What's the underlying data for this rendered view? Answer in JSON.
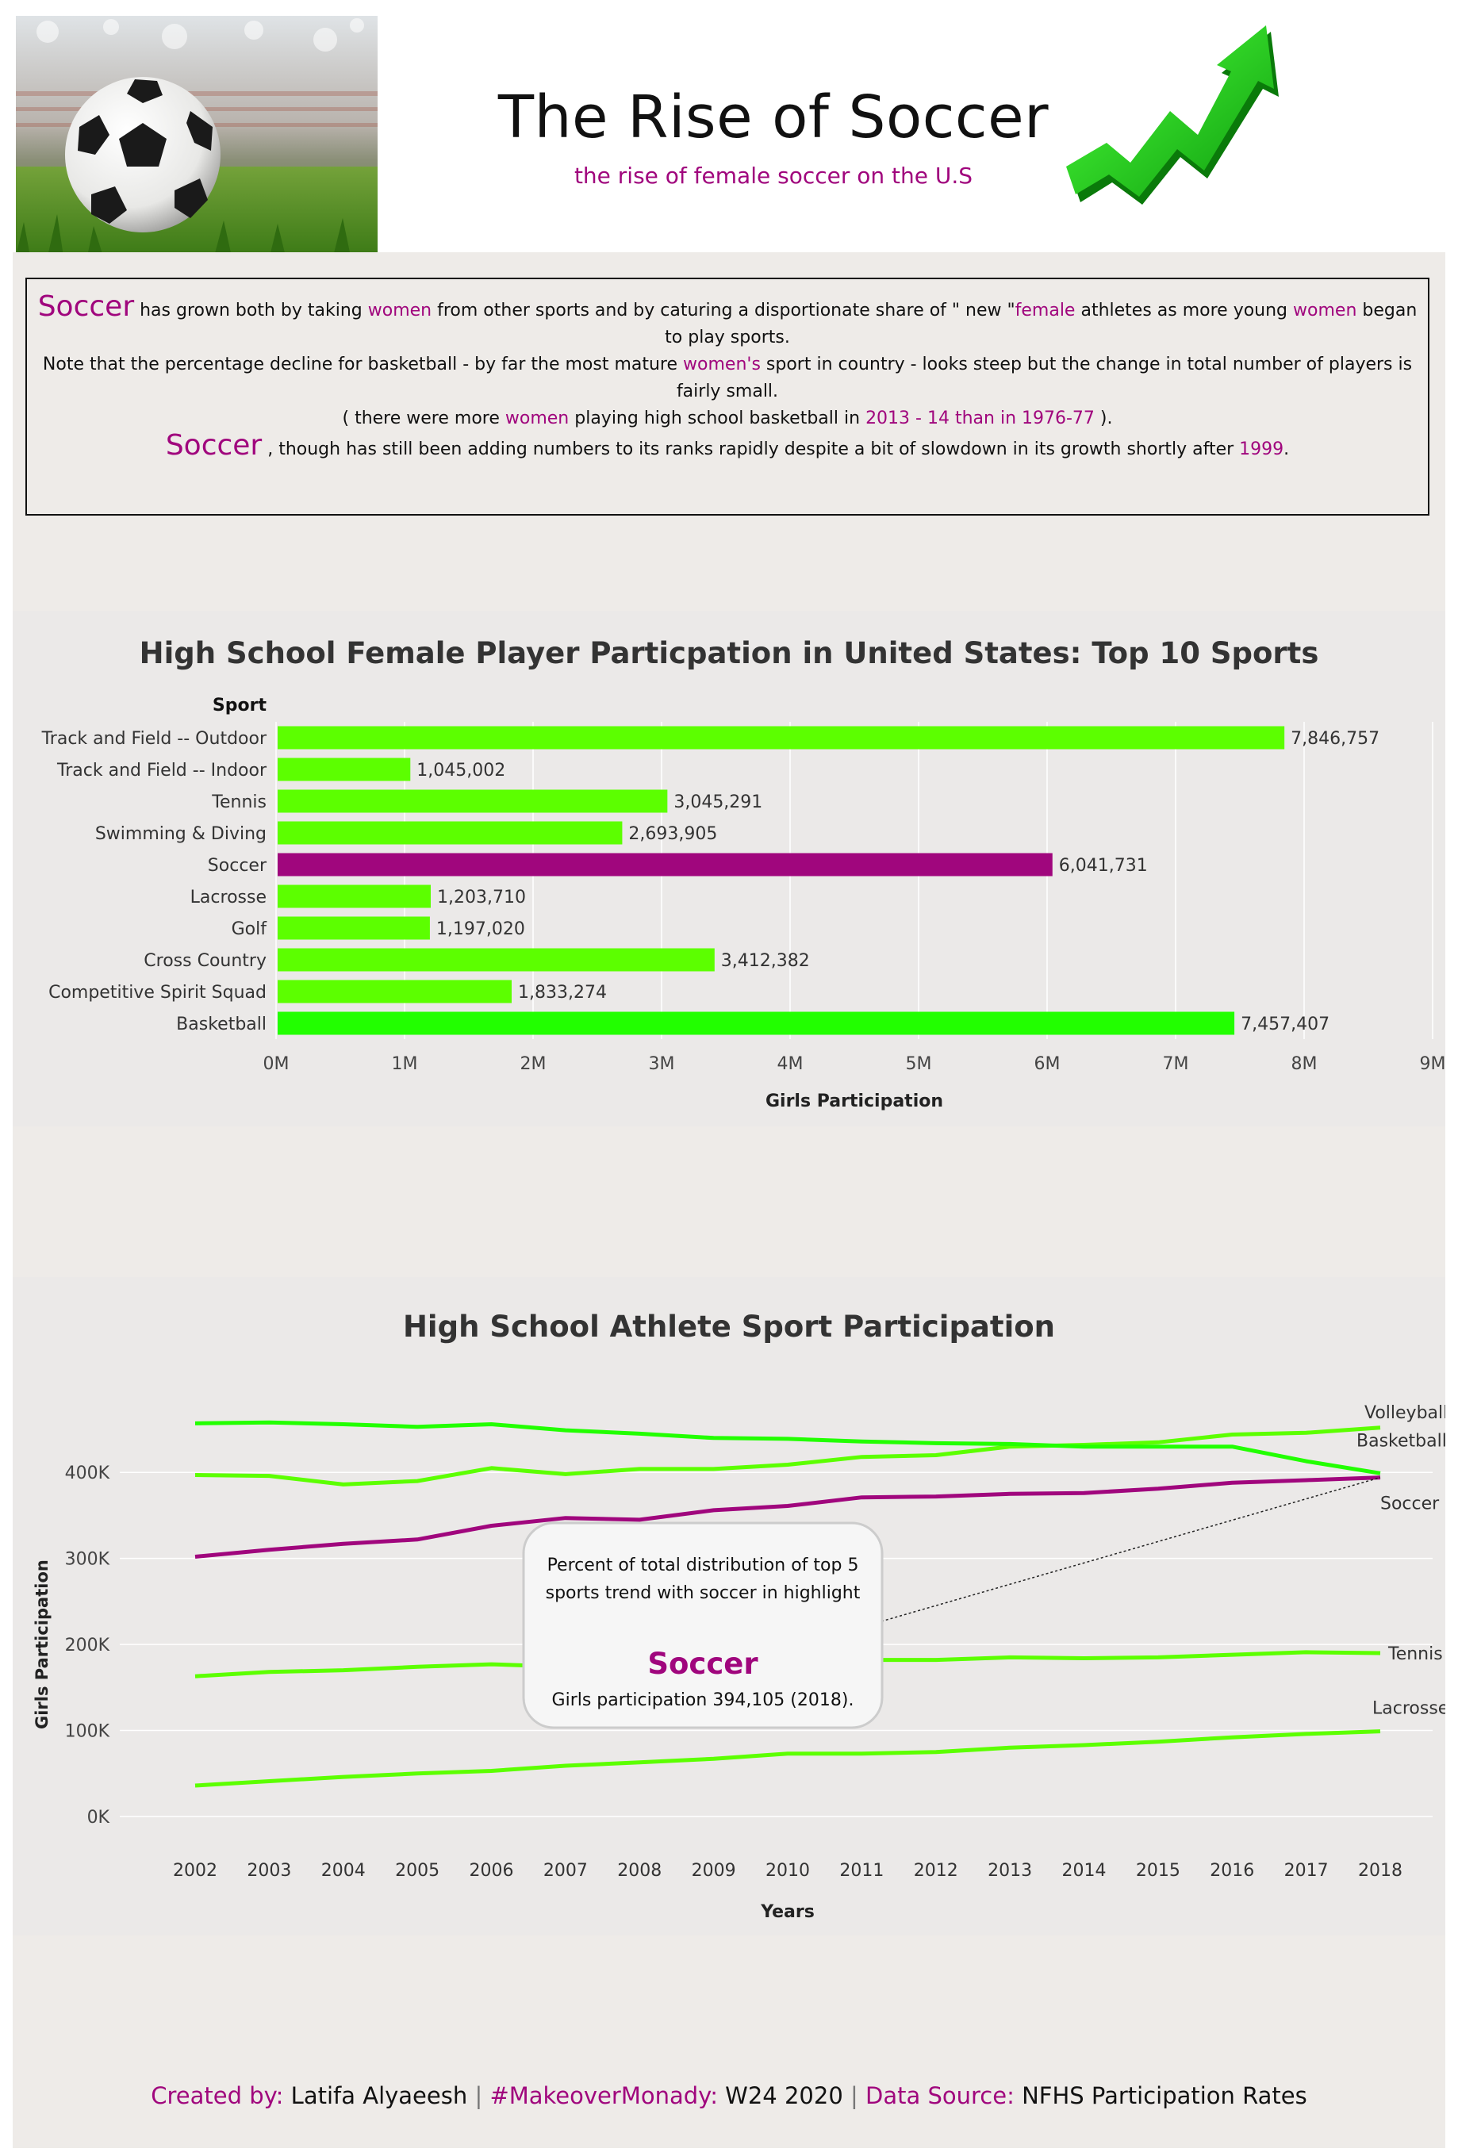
{
  "header": {
    "title": "The Rise of Soccer",
    "subtitle": "the rise of female soccer on the U.S"
  },
  "intro": {
    "p1": {
      "lead": "Soccer",
      "t1": " has grown both by taking ",
      "w1": "women",
      "t2": " from other sports and by caturing a disportionate share of \" new \"",
      "w2": "female",
      "t3": " athletes as more young ",
      "w3": "women",
      "t4": " began to play sports."
    },
    "p2": {
      "t1": "Note that the percentage decline for basketball - by far the most mature ",
      "w1": "women's",
      "t2": " sport in country - looks steep  but the change in total number of players is fairly small."
    },
    "p3": {
      "t1": "( there were more ",
      "w1": "women",
      "t2": " playing high school basketball in ",
      "w2": "2013 - 14 than in 1976-77",
      "t3": " )."
    },
    "p4": {
      "lead": "Soccer",
      "t1": " , though has still been adding numbers to its ranks rapidly despite a bit of slowdown in its growth shortly after ",
      "w1": "1999",
      "t2": "."
    }
  },
  "footer": {
    "l1": "Created by:",
    "v1": " Latifa Alyaeesh ",
    "sep1": "|",
    "l2": " #MakeoverMonady:",
    "v2": " W24 2020 ",
    "sep2": "|",
    "l3": " Data Source:",
    "v3": " NFHS Participation Rates"
  },
  "colors": {
    "green": "#5cff00",
    "green_bright": "#22ff00",
    "highlight": "#a0067d",
    "panel": "#eeebe8"
  },
  "chart_data": [
    {
      "type": "bar",
      "orientation": "horizontal",
      "title": "High School Female Player Particpation in United States: Top 10 Sports",
      "ylabel": "Sport",
      "xlabel": "Girls Participation",
      "categories": [
        "Track and Field -- Outdoor",
        "Track and Field -- Indoor",
        "Tennis",
        "Swimming & Diving",
        "Soccer",
        "Lacrosse",
        "Golf",
        "Cross Country",
        "Competitive Spirit Squad",
        "Basketball"
      ],
      "values": [
        7846757,
        1045002,
        3045291,
        2693905,
        6041731,
        1203710,
        1197020,
        3412382,
        1833274,
        7457407
      ],
      "value_labels": [
        "7,846,757",
        "1,045,002",
        "3,045,291",
        "2,693,905",
        "6,041,731",
        "1,203,710",
        "1,197,020",
        "3,412,382",
        "1,833,274",
        "7,457,407"
      ],
      "highlight": "Soccer",
      "xlim": [
        0,
        9000000
      ],
      "xticks": [
        0,
        1000000,
        2000000,
        3000000,
        4000000,
        5000000,
        6000000,
        7000000,
        8000000,
        9000000
      ],
      "xtick_labels": [
        "0M",
        "1M",
        "2M",
        "3M",
        "4M",
        "5M",
        "6M",
        "7M",
        "8M",
        "9M"
      ],
      "grid": "vertical"
    },
    {
      "type": "line",
      "title": "High School Athlete Sport Participation",
      "xlabel": "Years",
      "ylabel": "Girls Participation",
      "x": [
        2002,
        2003,
        2004,
        2005,
        2006,
        2007,
        2008,
        2009,
        2010,
        2011,
        2012,
        2013,
        2014,
        2015,
        2016,
        2017,
        2018
      ],
      "ylim": [
        0,
        450000
      ],
      "yticks": [
        0,
        100000,
        200000,
        300000,
        400000
      ],
      "ytick_labels": [
        "0K",
        "100K",
        "200K",
        "300K",
        "400K"
      ],
      "series": [
        {
          "name": "Volleyball",
          "values": [
            397000,
            396000,
            386000,
            390000,
            405000,
            398000,
            404000,
            404000,
            409000,
            418000,
            420000,
            430000,
            432000,
            435000,
            444000,
            446000,
            452000
          ]
        },
        {
          "name": "Basketball",
          "values": [
            457000,
            458000,
            456000,
            453000,
            456000,
            449000,
            445000,
            440000,
            439000,
            436000,
            434000,
            433000,
            430000,
            430000,
            430000,
            413000,
            399000
          ]
        },
        {
          "name": "Soccer",
          "values": [
            302000,
            310000,
            317000,
            322000,
            338000,
            347000,
            345000,
            356000,
            361000,
            371000,
            372000,
            375000,
            376000,
            381000,
            388000,
            391000,
            394105
          ]
        },
        {
          "name": "Tennis",
          "values": [
            163000,
            168000,
            170000,
            174000,
            177000,
            174000,
            178000,
            180000,
            182000,
            182000,
            182000,
            185000,
            184000,
            185000,
            188000,
            191000,
            190000
          ]
        },
        {
          "name": "Lacrosse",
          "values": [
            36000,
            41000,
            46000,
            50000,
            53000,
            59000,
            63000,
            67000,
            73000,
            73000,
            75000,
            80000,
            83000,
            87000,
            92000,
            96000,
            99000
          ]
        }
      ],
      "highlight": "Soccer",
      "annotation": {
        "text": "Percent of total distribution of top 5 sports trend with soccer in highlight",
        "headline": "Soccer",
        "detail": "Girls participation 394,105 (2018).",
        "target_x": 2018,
        "target_y": 394105
      },
      "grid": "horizontal"
    }
  ]
}
